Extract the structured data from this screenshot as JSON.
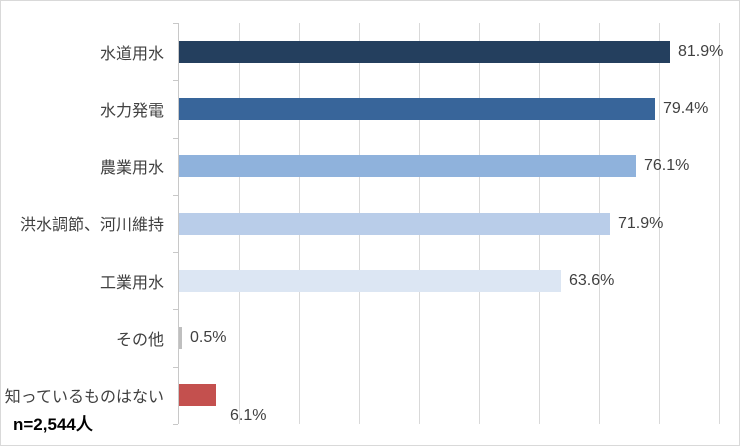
{
  "chart": {
    "annotation": "n=2,544人",
    "colors": {
      "gridline": "#D9D9D9",
      "axis": "#C8C8C8",
      "label_text": "#404040",
      "note_text": "#000000"
    }
  },
  "chart_data": {
    "type": "bar",
    "orientation": "horizontal",
    "title": "",
    "categories": [
      "水道用水",
      "水力発電",
      "農業用水",
      "洪水調節、河川維持",
      "工業用水",
      "その他",
      "知っているものはない"
    ],
    "values": [
      81.9,
      79.4,
      76.1,
      71.9,
      63.6,
      0.5,
      6.1
    ],
    "value_labels": [
      "81.9%",
      "79.4%",
      "76.1%",
      "71.9%",
      "63.6%",
      "0.5%",
      "6.1%"
    ],
    "xlim": [
      0,
      90
    ],
    "grid_step": 10,
    "grid": true,
    "legend_position": "none",
    "annotation": "n=2,544人",
    "items": [
      {
        "category": "水道用水",
        "value": 81.9,
        "display": "81.9%",
        "color": "#243F5E"
      },
      {
        "category": "水力発電",
        "value": 79.4,
        "display": "79.4%",
        "color": "#38659A"
      },
      {
        "category": "農業用水",
        "value": 76.1,
        "display": "76.1%",
        "color": "#8FB2DC"
      },
      {
        "category": "洪水調節、河川維持",
        "value": 71.9,
        "display": "71.9%",
        "color": "#B9CDE9"
      },
      {
        "category": "工業用水",
        "value": 63.6,
        "display": "63.6%",
        "color": "#DCE6F3"
      },
      {
        "category": "その他",
        "value": 0.5,
        "display": "0.5%",
        "color": "#BFBFBF"
      },
      {
        "category": "知っているものはない",
        "value": 6.1,
        "display": "6.1%",
        "color": "#C4504E",
        "label_below": true
      }
    ]
  }
}
